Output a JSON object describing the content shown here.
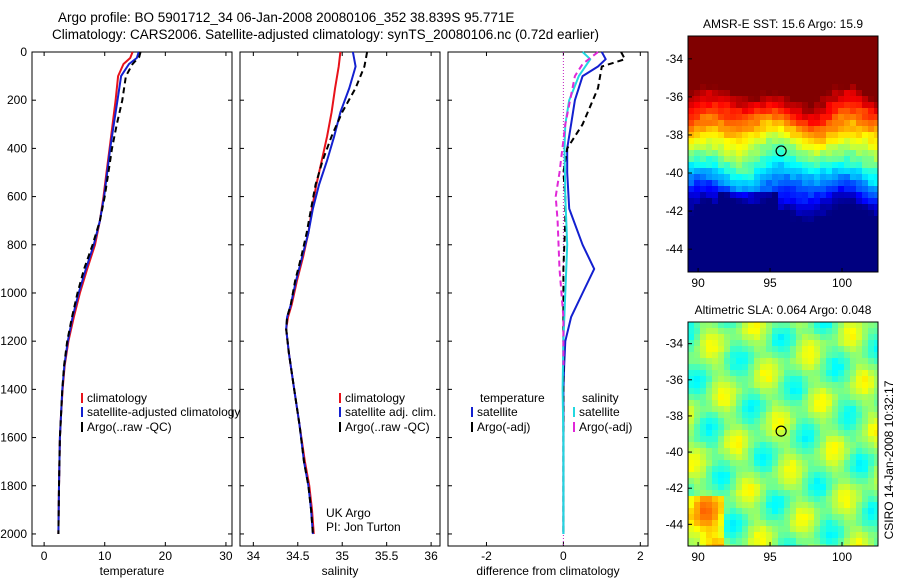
{
  "header": {
    "title_line_1": "Argo profile: BO 5901712_34 06-Jan-2008 20080106_352 38.839S 95.771E",
    "title_line_2": "Climatology: CARS2006. Satellite-adjusted climatology: synTS_20080106.nc (0.72d earlier)"
  },
  "colors": {
    "climatology": "#e8121a",
    "satellite": "#1320d0",
    "argo": "#000000",
    "satellite_diff_salinity": "#22d8e0",
    "argo_diff_salinity": "#e028d8"
  },
  "chart_data": [
    {
      "type": "line",
      "xlabel": "temperature",
      "ylabel": "",
      "xlim": [
        -2,
        31
      ],
      "ylim": [
        2050,
        0
      ],
      "y_reversed": true,
      "xticks": [
        "0",
        "10",
        "20",
        "30"
      ],
      "yticks": [
        "0",
        "200",
        "400",
        "600",
        "800",
        "1000",
        "1200",
        "1400",
        "1600",
        "1800",
        "2000"
      ],
      "legend": {
        "placement": "lower-right",
        "entries": [
          "climatology",
          "satellite-adjusted climatology",
          "Argo(..raw -QC)"
        ]
      },
      "series": [
        {
          "name": "climatology",
          "style": "solid",
          "color_key": "climatology",
          "x": [
            14.6,
            14.2,
            13.1,
            12.2,
            11.8,
            11.3,
            10.8,
            10.3,
            9.8,
            9.2,
            8.4,
            7.1,
            5.9,
            4.9,
            4.0,
            3.4,
            3.05,
            2.8,
            2.6,
            2.45,
            2.35
          ],
          "y": [
            0,
            25,
            50,
            100,
            200,
            300,
            400,
            500,
            600,
            700,
            800,
            900,
            1000,
            1100,
            1200,
            1300,
            1400,
            1500,
            1600,
            1800,
            2000
          ]
        },
        {
          "name": "satellite-adjusted climatology",
          "style": "solid",
          "color_key": "satellite",
          "x": [
            15.6,
            15.3,
            14.0,
            12.7,
            12.1,
            11.5,
            10.9,
            10.4,
            9.9,
            9.2,
            8.2,
            6.9,
            5.7,
            4.7,
            3.9,
            3.35,
            3.0,
            2.8,
            2.6,
            2.45,
            2.35
          ],
          "y": [
            0,
            25,
            50,
            100,
            200,
            300,
            400,
            500,
            600,
            700,
            800,
            900,
            1000,
            1100,
            1200,
            1300,
            1400,
            1500,
            1600,
            1800,
            2000
          ]
        },
        {
          "name": "Argo(..raw -QC)",
          "style": "dashed",
          "color_key": "argo",
          "x": [
            15.9,
            15.7,
            14.6,
            13.5,
            12.9,
            12.0,
            11.2,
            10.6,
            10.0,
            9.2,
            8.0,
            6.6,
            5.5,
            4.6,
            3.8,
            3.3,
            3.0,
            2.8,
            2.6,
            2.45,
            2.35
          ],
          "y": [
            0,
            20,
            50,
            100,
            200,
            300,
            400,
            500,
            600,
            700,
            800,
            900,
            1000,
            1100,
            1200,
            1300,
            1400,
            1500,
            1600,
            1800,
            2000
          ]
        }
      ]
    },
    {
      "type": "line",
      "xlabel": "salinity",
      "ylabel": "",
      "xlim": [
        33.85,
        36.1
      ],
      "ylim": [
        2050,
        0
      ],
      "y_reversed": true,
      "xticks": [
        "34",
        "34.5",
        "35",
        "35.5",
        "36"
      ],
      "legend": {
        "placement": "lower-right",
        "entries": [
          "climatology",
          "satellite adj. clim.",
          "Argo(..raw -QC)"
        ]
      },
      "annotations": [
        "UK Argo",
        "PI: Jon Turton"
      ],
      "series": [
        {
          "name": "climatology",
          "style": "solid",
          "color_key": "climatology",
          "x": [
            34.98,
            34.96,
            34.92,
            34.88,
            34.83,
            34.77,
            34.71,
            34.66,
            34.62,
            34.56,
            34.49,
            34.43,
            34.39,
            34.37,
            34.4,
            34.46,
            34.52,
            34.58,
            34.63,
            34.66,
            34.68
          ],
          "y": [
            0,
            60,
            150,
            250,
            350,
            450,
            550,
            650,
            750,
            850,
            950,
            1050,
            1100,
            1150,
            1250,
            1400,
            1550,
            1700,
            1800,
            1900,
            2000
          ]
        },
        {
          "name": "satellite adj. clim.",
          "style": "solid",
          "color_key": "satellite",
          "x": [
            35.12,
            35.15,
            35.08,
            34.98,
            34.91,
            34.83,
            34.74,
            34.67,
            34.62,
            34.55,
            34.48,
            34.42,
            34.38,
            34.37,
            34.4,
            34.46,
            34.52,
            34.57,
            34.62,
            34.65,
            34.67
          ],
          "y": [
            0,
            60,
            150,
            250,
            350,
            450,
            550,
            650,
            750,
            850,
            950,
            1050,
            1100,
            1150,
            1250,
            1400,
            1550,
            1700,
            1800,
            1900,
            2000
          ]
        },
        {
          "name": "Argo(..raw -QC)",
          "style": "dashed",
          "color_key": "argo",
          "x": [
            35.28,
            35.25,
            35.15,
            35.0,
            34.88,
            34.78,
            34.7,
            34.65,
            34.6,
            34.54,
            34.47,
            34.42,
            34.38,
            34.37,
            34.4,
            34.46,
            34.52,
            34.57,
            34.62,
            34.65,
            34.67
          ],
          "y": [
            0,
            60,
            150,
            250,
            350,
            450,
            550,
            650,
            750,
            850,
            950,
            1050,
            1100,
            1150,
            1250,
            1400,
            1550,
            1700,
            1800,
            1900,
            2000
          ]
        }
      ]
    },
    {
      "type": "line",
      "xlabel": "difference from climatology",
      "ylabel": "",
      "xlim": [
        -3,
        2.2
      ],
      "ylim": [
        2050,
        0
      ],
      "y_reversed": true,
      "xticks": [
        "-2",
        "0",
        "2"
      ],
      "zero_line": "dotted",
      "legend": {
        "placement": "lower-center",
        "columns": [
          {
            "heading": "temperature",
            "entries": [
              "satellite",
              "Argo(-adj)"
            ]
          },
          {
            "heading": "salinity",
            "entries": [
              "satellite",
              "Argo(-adj)"
            ]
          }
        ]
      },
      "series": [
        {
          "name": "temperature satellite",
          "style": "solid",
          "color_key": "satellite",
          "x": [
            1.0,
            1.1,
            0.9,
            0.5,
            0.3,
            0.2,
            0.1,
            0.1,
            0.15,
            0.5,
            0.8,
            0.5,
            0.2,
            0.05,
            0.02,
            0.0,
            0.0,
            0.0,
            0.0
          ],
          "y": [
            0,
            30,
            60,
            100,
            200,
            300,
            400,
            500,
            650,
            800,
            900,
            1000,
            1100,
            1200,
            1300,
            1400,
            1600,
            1800,
            2000
          ]
        },
        {
          "name": "temperature Argo(-adj)",
          "style": "dashed",
          "color_key": "argo",
          "x": [
            1.5,
            1.6,
            1.0,
            0.9,
            0.5,
            0.1,
            0.0,
            0.05,
            0.05,
            0.0,
            0.0,
            0.0,
            0.0,
            0.0,
            0.0
          ],
          "y": [
            0,
            30,
            60,
            150,
            300,
            400,
            500,
            600,
            700,
            900,
            1100,
            1300,
            1500,
            1800,
            2000
          ]
        },
        {
          "name": "salinity satellite",
          "style": "solid",
          "color_key": "satellite_diff_salinity",
          "x": [
            0.5,
            0.7,
            0.4,
            0.15,
            0.05,
            0.03,
            0.05,
            0.1,
            0.05,
            0.0,
            -0.02,
            0.0,
            0.0,
            0.0
          ],
          "y": [
            0,
            30,
            100,
            200,
            300,
            400,
            600,
            800,
            1000,
            1200,
            1400,
            1600,
            1800,
            2000
          ]
        },
        {
          "name": "salinity Argo(-adj)",
          "style": "dashed",
          "color_key": "argo_diff_salinity",
          "x": [
            0.9,
            0.5,
            0.3,
            0.05,
            -0.1,
            -0.2,
            -0.15,
            -0.1,
            0.0,
            0.0
          ],
          "y": [
            0,
            50,
            100,
            300,
            500,
            600,
            700,
            900,
            1100,
            1300
          ]
        }
      ]
    },
    {
      "type": "heatmap",
      "title": "AMSR-E SST: 15.6 Argo: 15.9",
      "xlim": [
        89.3,
        102.5
      ],
      "ylim": [
        -45.2,
        -32.8
      ],
      "xticks": [
        "90",
        "95",
        "100"
      ],
      "yticks": [
        "-34",
        "-36",
        "-38",
        "-40",
        "-42",
        "-44"
      ],
      "colormap": "jet",
      "marker": {
        "lon": 95.771,
        "lat": -38.839,
        "shape": "circle"
      }
    },
    {
      "type": "heatmap",
      "title": "Altimetric SLA: 0.064 Argo: 0.048",
      "xlim": [
        89.3,
        102.5
      ],
      "ylim": [
        -45.2,
        -32.8
      ],
      "xticks": [
        "90",
        "95",
        "100"
      ],
      "yticks": [
        "-34",
        "-36",
        "-38",
        "-40",
        "-42",
        "-44"
      ],
      "colormap": "jet",
      "marker": {
        "lon": 95.771,
        "lat": -38.839,
        "shape": "circle"
      }
    }
  ],
  "credit": "CSIRO 14-Jan-2008 10:32:17"
}
